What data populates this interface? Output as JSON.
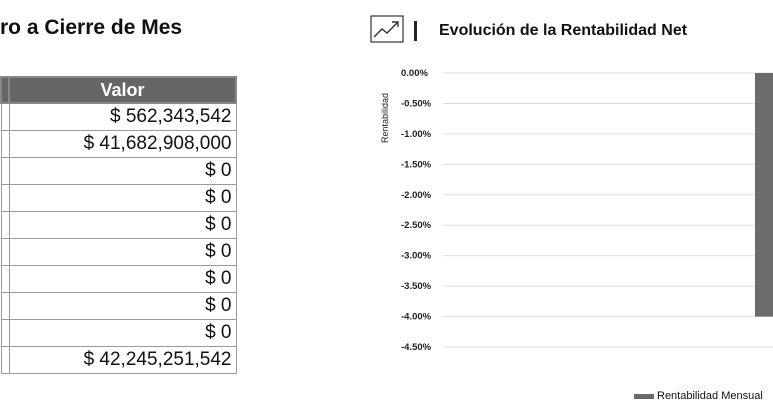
{
  "left_panel": {
    "title": "ro a Cierre de Mes",
    "table": {
      "header": "Valor",
      "rows": [
        "$ 562,343,542",
        "$ 41,682,908,000",
        "$ 0",
        "$ 0",
        "$ 0",
        "$ 0",
        "$ 0",
        "$ 0",
        "$ 0",
        "$ 42,245,251,542"
      ]
    }
  },
  "right_panel": {
    "icon": "trend-chart-icon",
    "title": "Evolución de la Rentabilidad Net"
  },
  "chart_data": {
    "type": "bar",
    "title": "Evolución de la Rentabilidad Net",
    "ylabel": "Rentabilidad",
    "xlabel": "",
    "ylim": [
      -4.5,
      0
    ],
    "yticks": [
      "0.00%",
      "-0.50%",
      "-1.00%",
      "-1.50%",
      "-2.00%",
      "-2.50%",
      "-3.00%",
      "-3.50%",
      "-4.00%",
      "-4.50%"
    ],
    "grid": true,
    "legend_position": "bottom-right",
    "series": [
      {
        "name": "Rentabilidad Mensual",
        "color": "#6b6b6b",
        "values": [
          -4.0
        ]
      }
    ]
  }
}
